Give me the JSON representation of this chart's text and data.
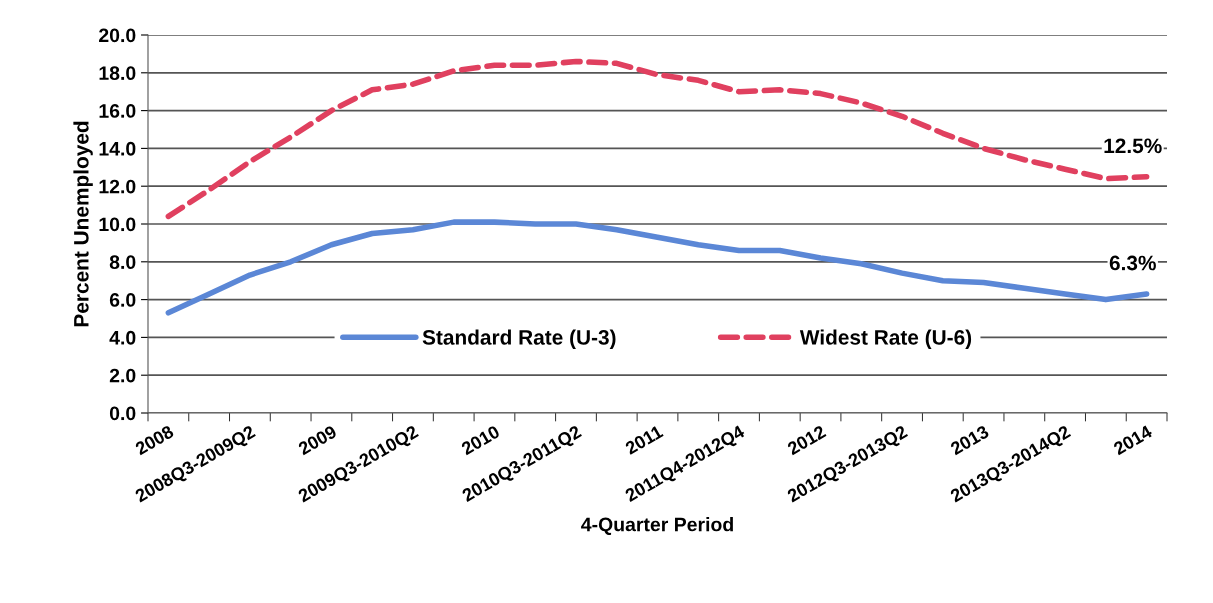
{
  "chart_data": {
    "type": "line",
    "xlabel": "4-Quarter Period",
    "ylabel": "Percent Unemployed",
    "categories": [
      "2008",
      null,
      "2008Q3-2009Q2",
      null,
      "2009",
      null,
      "2009Q3-2010Q2",
      null,
      "2010",
      null,
      "2010Q3-2011Q2",
      null,
      "2011",
      null,
      "2011Q4-2012Q4",
      null,
      "2012",
      null,
      "2012Q3-2013Q2",
      null,
      "2013",
      null,
      "2013Q3-2014Q2",
      null,
      "2014"
    ],
    "series": [
      {
        "name": "Standard Rate (U-3)",
        "color": "#5b87d6",
        "line_style": "solid",
        "values": [
          5.3,
          6.3,
          7.3,
          8.0,
          8.9,
          9.5,
          9.7,
          10.1,
          10.1,
          10.0,
          10.0,
          9.7,
          9.3,
          8.9,
          8.6,
          8.6,
          8.2,
          7.9,
          7.4,
          7.0,
          6.9,
          6.6,
          6.3,
          6.0,
          6.3
        ]
      },
      {
        "name": "Widest Rate (U-6)",
        "color": "#e0405f",
        "line_style": "dashed",
        "values": [
          10.4,
          11.8,
          13.3,
          14.6,
          16.0,
          17.1,
          17.4,
          18.1,
          18.4,
          18.4,
          18.6,
          18.5,
          17.9,
          17.6,
          17.0,
          17.1,
          16.9,
          16.4,
          15.7,
          14.8,
          14.0,
          13.4,
          12.9,
          12.4,
          12.5
        ]
      }
    ],
    "ylim": [
      0.0,
      20.0
    ],
    "yticks": [
      {
        "value": 0,
        "label": "0.0"
      },
      {
        "value": 2,
        "label": "2.0"
      },
      {
        "value": 4,
        "label": "4.0"
      },
      {
        "value": 6,
        "label": "6.0"
      },
      {
        "value": 8,
        "label": "8.0"
      },
      {
        "value": 10,
        "label": "10.0"
      },
      {
        "value": 12,
        "label": "12.0"
      },
      {
        "value": 14,
        "label": "14.0"
      },
      {
        "value": 16,
        "label": "16.0"
      },
      {
        "value": 18,
        "label": "18.0"
      },
      {
        "value": 20,
        "label": "20.0"
      }
    ],
    "grid": "y",
    "legend": "bottom",
    "marker": "none",
    "annotations": [
      {
        "text": "12.5%",
        "x": "2014",
        "y": 12.5
      },
      {
        "text": "6.3%",
        "x": "2014",
        "y": 6.3
      }
    ]
  }
}
